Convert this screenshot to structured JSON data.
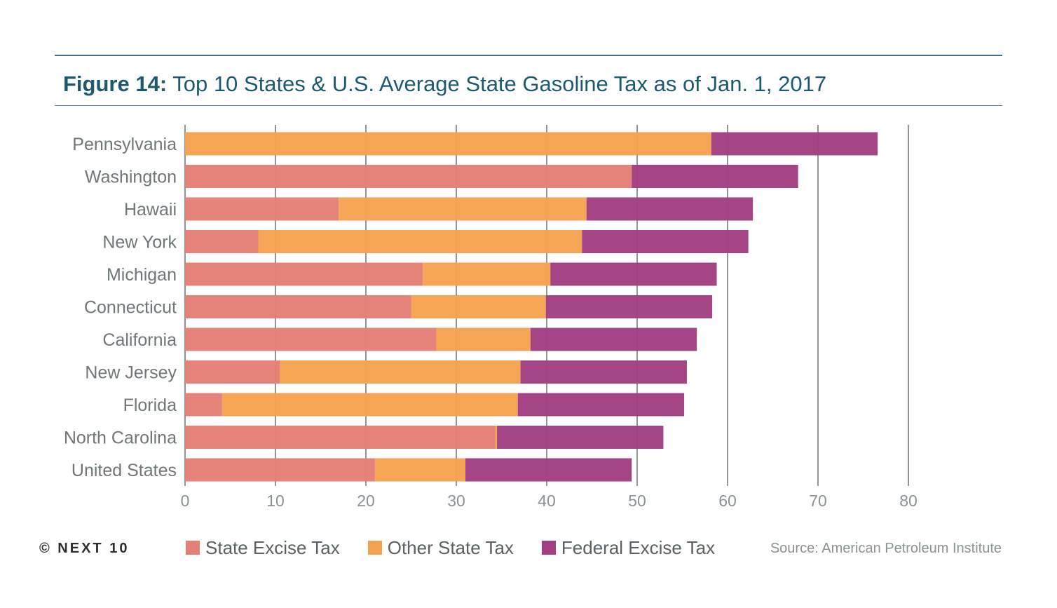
{
  "header": {
    "title_lead": "Figure 14:",
    "title_rest": "Top 10 States & U.S. Average State Gasoline Tax as of Jan. 1, 2017"
  },
  "footer": {
    "copyright": "© NEXT 10",
    "source": "Source: American Petroleum Institute"
  },
  "colors": {
    "state_excise": "#e47f76",
    "other_state": "#f5a250",
    "federal_excise": "#a23f82",
    "gridline": "#2b2b2b",
    "title": "#1e5a6e"
  },
  "chart_data": {
    "type": "bar",
    "orientation": "horizontal",
    "stacked": true,
    "title": "Top 10 States & U.S. Average State Gasoline Tax as of Jan. 1, 2017",
    "xlabel": "",
    "ylabel": "",
    "xlim": [
      0,
      80
    ],
    "xticks": [
      0,
      10,
      20,
      30,
      40,
      50,
      60,
      70,
      80
    ],
    "grid": true,
    "legend_position": "bottom",
    "categories": [
      "Pennsylvania",
      "Washington",
      "Hawaii",
      "New York",
      "Michigan",
      "Connecticut",
      "California",
      "New Jersey",
      "Florida",
      "North Carolina",
      "United States"
    ],
    "series": [
      {
        "name": "State Excise Tax",
        "color": "#e47f76",
        "values": [
          0,
          49.4,
          17,
          8.1,
          26.3,
          25,
          27.8,
          10.5,
          4.1,
          34.3,
          21
        ]
      },
      {
        "name": "Other State Tax",
        "color": "#f5a250",
        "values": [
          58.2,
          0,
          27.4,
          35.8,
          14.1,
          14.9,
          10.4,
          26.6,
          32.7,
          0.2,
          10
        ]
      },
      {
        "name": "Federal Excise Tax",
        "color": "#a23f82",
        "values": [
          18.4,
          18.4,
          18.4,
          18.4,
          18.4,
          18.4,
          18.4,
          18.4,
          18.4,
          18.4,
          18.4
        ]
      }
    ]
  }
}
